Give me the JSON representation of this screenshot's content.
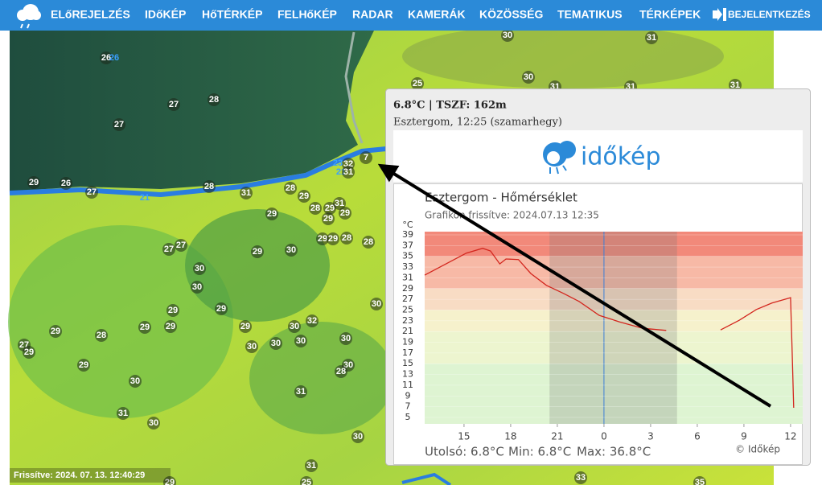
{
  "nav": {
    "items": [
      "ELőREJELZÉS",
      "IDőKÉP",
      "HőTÉRKÉP",
      "FELHőKÉP",
      "RADAR",
      "KAMERÁK",
      "KÖZÖSSÉG",
      "TEMATIKUS",
      "TÉRKÉPEK"
    ],
    "login": "BEJELENTKEZÉS"
  },
  "map": {
    "updated": "Frissítve: 2024. 07. 13. 12:40:29",
    "labels": [
      "30",
      "31",
      "25",
      "30",
      "31",
      "31",
      "31",
      "26",
      "26",
      "27",
      "28",
      "27",
      "7",
      "32",
      "29",
      "26",
      "27",
      "28",
      "31",
      "28",
      "29",
      "28",
      "29",
      "31",
      "29",
      "29",
      "29",
      "29",
      "29",
      "28",
      "28",
      "27",
      "27",
      "29",
      "30",
      "30",
      "30",
      "30",
      "29",
      "29",
      "29",
      "28",
      "29",
      "29",
      "29",
      "30",
      "32",
      "27",
      "29",
      "30",
      "30",
      "30",
      "30",
      "29",
      "30",
      "28",
      "30",
      "31",
      "31",
      "30",
      "30",
      "31",
      "29",
      "25",
      "33",
      "35",
      "21",
      "23",
      "21",
      "31"
    ]
  },
  "popup": {
    "header": "6.8°C | TSZF: 162m",
    "place": "Esztergom, 12:25 (szamarhegy)",
    "logo": "időkép",
    "footer": [
      "Utolsó: 6.8°C",
      "Min: 6.8°C",
      "Max: 36.8°C"
    ],
    "credit": "© Időkép"
  },
  "chart_data": {
    "type": "line",
    "title": "Esztergom - Hőmérséklet",
    "subtitle": "Grafikon frissítve: 2024.07.13 12:35",
    "y_label": "°C",
    "x": [
      12.47,
      14.1,
      15.15,
      16.2,
      16.7,
      17.3,
      17.7,
      18.5,
      19.3,
      20.3,
      21.4,
      22.4,
      23.7,
      25.0,
      26.5,
      28.0,
      30.0,
      31.5,
      32.7,
      33.8,
      34.8,
      36.0,
      36.1,
      36.2
    ],
    "values": [
      31.5,
      34,
      35.6,
      36.5,
      36.0,
      33.6,
      34.5,
      34.4,
      31.8,
      29.6,
      28.1,
      26.6,
      24,
      22.8,
      21.6,
      21.2,
      null,
      21.3,
      23.1,
      25.1,
      26.3,
      27.3,
      17.2,
      6.8
    ],
    "color": "#d3261e",
    "xlim": [
      12.47,
      36.78
    ],
    "ylim": [
      3.8,
      39.6
    ],
    "xticks": [
      15,
      18,
      21,
      {
        "value": 24,
        "label": "0"
      },
      {
        "value": 27,
        "label": "3"
      },
      {
        "value": 30,
        "label": "6"
      },
      {
        "value": 33,
        "label": "9"
      },
      {
        "value": 36,
        "label": "12"
      }
    ],
    "yticks": [
      5,
      7,
      9,
      11,
      13,
      15,
      17,
      19,
      21,
      23,
      25,
      27,
      29,
      31,
      33,
      35,
      37,
      39
    ],
    "bands": [
      {
        "from": 35,
        "to": 39.6,
        "color": "#f2897a"
      },
      {
        "from": 29,
        "to": 35,
        "color": "#f7b9a6"
      },
      {
        "from": 25,
        "to": 29,
        "color": "#f8dcc4"
      },
      {
        "from": 21,
        "to": 25,
        "color": "#f6f1cc"
      },
      {
        "from": 15,
        "to": 21,
        "color": "#edf5cf"
      },
      {
        "from": 3.8,
        "to": 15,
        "color": "#def4d2"
      }
    ],
    "night": [
      20.5,
      28.7
    ],
    "now_line": 24,
    "now_color": "#3b7fd6"
  }
}
